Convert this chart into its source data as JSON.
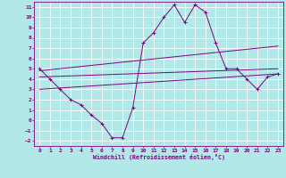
{
  "xlabel": "Windchill (Refroidissement éolien,°C)",
  "background_color": "#b2e8e8",
  "grid_color": "#c8e8e8",
  "line_color": "#800080",
  "xlim": [
    -0.5,
    23.5
  ],
  "ylim": [
    -2.5,
    11.5
  ],
  "xticks": [
    0,
    1,
    2,
    3,
    4,
    5,
    6,
    7,
    8,
    9,
    10,
    11,
    12,
    13,
    14,
    15,
    16,
    17,
    18,
    19,
    20,
    21,
    22,
    23
  ],
  "yticks": [
    -2,
    -1,
    0,
    1,
    2,
    3,
    4,
    5,
    6,
    7,
    8,
    9,
    10,
    11
  ],
  "series": [
    {
      "x": [
        0,
        1,
        2,
        3,
        4,
        5,
        6,
        7,
        8,
        9,
        10,
        11,
        12,
        13,
        14,
        15,
        16,
        17,
        18,
        19,
        20,
        21,
        22,
        23
      ],
      "y": [
        5.0,
        4.0,
        3.0,
        2.0,
        1.5,
        0.5,
        -0.3,
        -1.7,
        -1.7,
        1.2,
        7.5,
        8.5,
        10.0,
        11.2,
        9.5,
        11.2,
        10.5,
        7.5,
        5.0,
        5.0,
        4.0,
        3.0,
        4.2,
        4.5
      ]
    },
    {
      "x": [
        0,
        23
      ],
      "y": [
        4.8,
        7.2
      ]
    },
    {
      "x": [
        0,
        23
      ],
      "y": [
        4.2,
        5.0
      ]
    },
    {
      "x": [
        0,
        23
      ],
      "y": [
        3.0,
        4.5
      ]
    }
  ]
}
